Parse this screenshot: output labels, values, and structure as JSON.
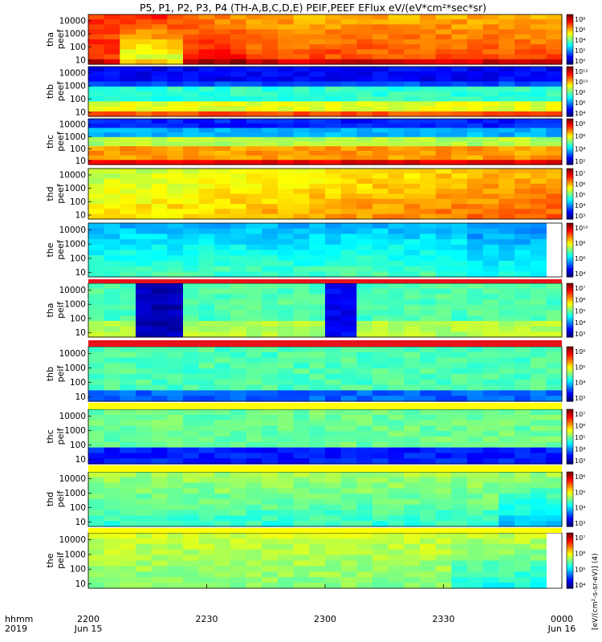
{
  "title": "P5, P1, P2, P3, P4 (TH-A,B,C,D,E) PEIF,PEEF EFlux eV/(eV*cm²*sec*sr)",
  "x_axis": {
    "row1_label": "hhmm",
    "row2_label": "2019",
    "ticks": [
      {
        "t": 0,
        "label": "2200",
        "date": "Jun 15"
      },
      {
        "t": 30,
        "label": "2230",
        "date": ""
      },
      {
        "t": 60,
        "label": "2300",
        "date": ""
      },
      {
        "t": 90,
        "label": "2330",
        "date": ""
      },
      {
        "t": 120,
        "label": "0000",
        "date": "Jun 16"
      }
    ]
  },
  "colorbar_units": {
    "electron": "[eV/(cm²-s-sr-eV)] (4)",
    "ion": "[eV/(cm²-s-sr-eV)] (4)"
  },
  "colors": {
    "red": "#e8121a",
    "yellow": "#ffff00",
    "blue": "#1010c8"
  },
  "chart_data": [
    {
      "type": "heatmap",
      "panel": "tha peef",
      "ylabel": [
        "tha",
        "peef"
      ],
      "yticks": [
        "10000",
        "1000",
        "100",
        "10"
      ],
      "ylim": [
        5,
        30000
      ],
      "log_y": true,
      "cbar_ticks": [
        "10⁸",
        "10⁶",
        "10⁴",
        "10²",
        "10⁰"
      ]
    },
    {
      "type": "heatmap",
      "panel": "thb peef",
      "ylabel": [
        "thb",
        "peef"
      ],
      "yticks": [
        "10000",
        "1000",
        "100",
        "10"
      ],
      "ylim": [
        5,
        30000
      ],
      "log_y": true,
      "cbar_ticks": [
        "10¹²",
        "10¹⁰",
        "10⁸",
        "10⁶",
        "10⁴"
      ]
    },
    {
      "type": "heatmap",
      "panel": "thc peef",
      "ylabel": [
        "thc",
        "peef"
      ],
      "yticks": [
        "10000",
        "1000",
        "100",
        "10"
      ],
      "ylim": [
        5,
        30000
      ],
      "log_y": true,
      "cbar_ticks": [
        "10⁸",
        "10⁶",
        "10⁴",
        "10²"
      ]
    },
    {
      "type": "heatmap",
      "panel": "thd peef",
      "ylabel": [
        "thd",
        "peef"
      ],
      "yticks": [
        "10000",
        "1000",
        "100",
        "10"
      ],
      "ylim": [
        5,
        30000
      ],
      "log_y": true,
      "cbar_ticks": [
        "10⁷",
        "10⁶",
        "10⁵",
        "10⁴",
        "10³"
      ]
    },
    {
      "type": "heatmap",
      "panel": "the peef",
      "ylabel": [
        "the",
        "peef"
      ],
      "yticks": [
        "10000",
        "1000",
        "100",
        "10"
      ],
      "ylim": [
        5,
        30000
      ],
      "log_y": true,
      "cbar_ticks": [
        "10¹⁰",
        "10⁸",
        "10⁶",
        "10⁴"
      ]
    },
    {
      "type": "heatmap",
      "panel": "tha peif",
      "ylabel": [
        "tha",
        "peif"
      ],
      "yticks": [
        "10000",
        "1000",
        "100",
        "10"
      ],
      "ylim": [
        5,
        30000
      ],
      "log_y": true,
      "cbar_ticks": [
        "10⁷",
        "10⁶",
        "10⁵",
        "10⁴",
        "10³"
      ]
    },
    {
      "type": "heatmap",
      "panel": "thb peif",
      "ylabel": [
        "thb",
        "peif"
      ],
      "yticks": [
        "10000",
        "1000",
        "100",
        "10"
      ],
      "ylim": [
        5,
        30000
      ],
      "log_y": true,
      "cbar_ticks": [
        "10⁶",
        "10⁵",
        "10⁴",
        "10³"
      ]
    },
    {
      "type": "heatmap",
      "panel": "thc peif",
      "ylabel": [
        "thc",
        "peif"
      ],
      "yticks": [
        "10000",
        "1000",
        "100",
        "10"
      ],
      "ylim": [
        5,
        30000
      ],
      "log_y": true,
      "cbar_ticks": [
        "10⁷",
        "10⁶",
        "10⁵",
        "10⁴",
        "10³"
      ]
    },
    {
      "type": "heatmap",
      "panel": "thd peif",
      "ylabel": [
        "thd",
        "peif"
      ],
      "yticks": [
        "10000",
        "1000",
        "100",
        "10"
      ],
      "ylim": [
        5,
        30000
      ],
      "log_y": true,
      "cbar_ticks": [
        "10⁶",
        "10⁵",
        "10⁴",
        "10³"
      ]
    },
    {
      "type": "heatmap",
      "panel": "the peif",
      "ylabel": [
        "the",
        "peif"
      ],
      "yticks": [
        "10000",
        "1000",
        "100",
        "10"
      ],
      "ylim": [
        5,
        30000
      ],
      "log_y": true,
      "cbar_ticks": [
        "10⁷",
        "10⁶",
        "10⁵",
        "10⁴"
      ]
    }
  ]
}
